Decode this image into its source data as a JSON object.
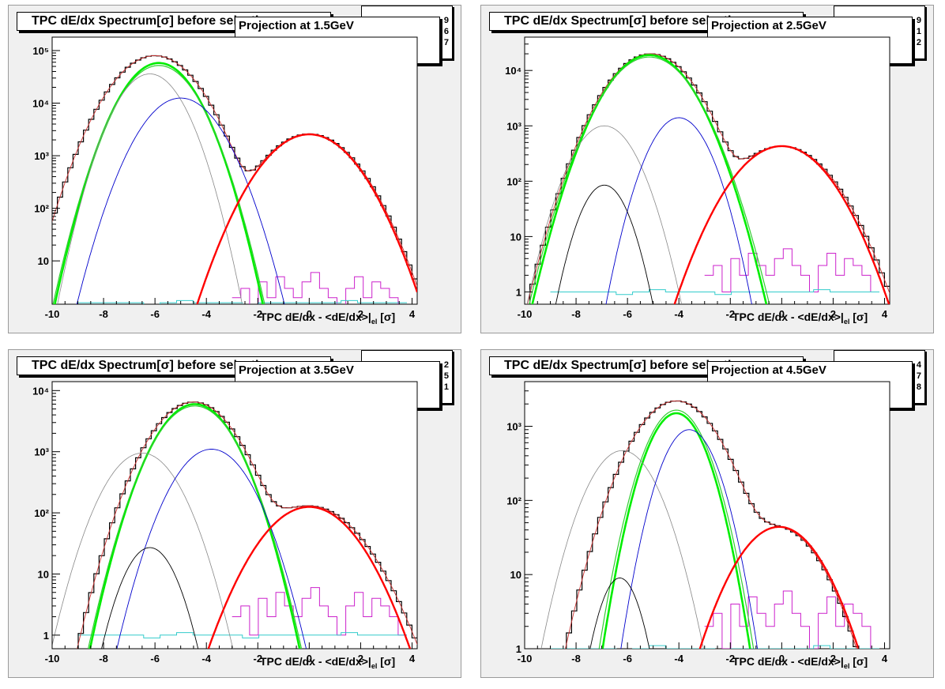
{
  "common": {
    "title": "TPC dE/dx Spectrum[σ] before selection",
    "xlabel_main": "TPC dE/dx - <dE/dx>|",
    "xlabel_sub": "el",
    "xlabel_tail": " [σ]",
    "x_tick_labels": [
      "-10",
      "-8",
      "-6",
      "-4",
      "-2",
      "0",
      "2",
      "4"
    ]
  },
  "colors": {
    "hist": "#000000",
    "total_fit": "#cc3333",
    "electron": "#ff0000",
    "pion": "#00ee00",
    "pion2": "#33cc33",
    "proton": "#0000cc",
    "kaon": "#888888",
    "deuteron": "#000000",
    "magenta": "#cc22cc",
    "cyan": "#33cccc"
  },
  "panels": [
    {
      "projection": "Projection at 1.5GeV",
      "stats": [
        "9",
        "6",
        "7"
      ],
      "y_tick_labels": [
        "10",
        "10²",
        "10³",
        "10⁴",
        "10⁵"
      ],
      "chart_data": {
        "type": "line",
        "log_y": true,
        "xlim": [
          -10,
          4.2
        ],
        "ylim": [
          1.5,
          180000
        ],
        "y_ticks": [
          10,
          100,
          1000,
          10000,
          100000
        ],
        "series": [
          {
            "name": "data",
            "mu": -6.0,
            "sigma": 1.05,
            "amp": 80000,
            "mu2": 0.0,
            "sigma2": 1.15,
            "amp2": 2600
          },
          {
            "name": "pion",
            "mu": -5.85,
            "sigma": 0.88,
            "amp": 58000
          },
          {
            "name": "pion2",
            "mu": -5.85,
            "sigma": 0.9,
            "amp": 52000
          },
          {
            "name": "kaon",
            "mu": -6.2,
            "sigma": 0.8,
            "amp": 36000
          },
          {
            "name": "proton",
            "mu": -5.0,
            "sigma": 0.95,
            "amp": 12500
          },
          {
            "name": "electron",
            "mu": 0.0,
            "sigma": 1.13,
            "amp": 2550
          }
        ]
      }
    },
    {
      "projection": "Projection at 2.5GeV",
      "stats": [
        "9",
        "1",
        "2"
      ],
      "y_tick_labels": [
        "1",
        "10",
        "10²",
        "10³",
        "10⁴"
      ],
      "chart_data": {
        "type": "line",
        "log_y": true,
        "xlim": [
          -10,
          4.2
        ],
        "ylim": [
          0.6,
          40000
        ],
        "y_ticks": [
          1,
          10,
          100,
          1000,
          10000
        ],
        "series": [
          {
            "name": "data",
            "mu": -5.1,
            "sigma": 1.05,
            "amp": 20000,
            "mu2": 0.0,
            "sigma2": 1.2,
            "amp2": 430
          },
          {
            "name": "pion",
            "mu": -5.15,
            "sigma": 1.0,
            "amp": 19000
          },
          {
            "name": "pion2",
            "mu": -5.15,
            "sigma": 1.03,
            "amp": 17500
          },
          {
            "name": "kaon",
            "mu": -6.9,
            "sigma": 0.78,
            "amp": 1000
          },
          {
            "name": "proton",
            "mu": -4.0,
            "sigma": 0.72,
            "amp": 1400
          },
          {
            "name": "deuteron",
            "mu": -6.9,
            "sigma": 0.6,
            "amp": 85
          },
          {
            "name": "electron",
            "mu": 0.0,
            "sigma": 1.15,
            "amp": 430
          }
        ]
      }
    },
    {
      "projection": "Projection at 3.5GeV",
      "stats": [
        "2",
        "5",
        "1"
      ],
      "y_tick_labels": [
        "1",
        "10",
        "10²",
        "10³",
        "10⁴"
      ],
      "chart_data": {
        "type": "line",
        "log_y": true,
        "xlim": [
          -10,
          4.2
        ],
        "ylim": [
          0.6,
          14000
        ],
        "y_ticks": [
          1,
          10,
          100,
          1000,
          10000
        ],
        "series": [
          {
            "name": "data",
            "mu": -4.5,
            "sigma": 1.05,
            "amp": 6500,
            "mu2": 0.0,
            "sigma2": 1.3,
            "amp2": 130
          },
          {
            "name": "pion",
            "mu": -4.45,
            "sigma": 0.95,
            "amp": 6000
          },
          {
            "name": "pion2",
            "mu": -4.45,
            "sigma": 0.97,
            "amp": 5600
          },
          {
            "name": "kaon",
            "mu": -6.5,
            "sigma": 0.92,
            "amp": 950
          },
          {
            "name": "proton",
            "mu": -3.8,
            "sigma": 0.95,
            "amp": 1100
          },
          {
            "name": "deuteron",
            "mu": -6.2,
            "sigma": 0.68,
            "amp": 27
          },
          {
            "name": "electron",
            "mu": 0.0,
            "sigma": 1.2,
            "amp": 125
          }
        ]
      }
    },
    {
      "projection": "Projection at 4.5GeV",
      "stats": [
        "4",
        "7",
        "8"
      ],
      "y_tick_labels": [
        "1",
        "10",
        "10²",
        "10³"
      ],
      "chart_data": {
        "type": "line",
        "log_y": true,
        "xlim": [
          -10,
          4.2
        ],
        "ylim": [
          1,
          4000
        ],
        "y_ticks": [
          1,
          10,
          100,
          1000
        ],
        "series": [
          {
            "name": "data",
            "mu": -4.1,
            "sigma": 1.1,
            "amp": 2200,
            "mu2": -0.1,
            "sigma2": 1.1,
            "amp2": 42
          },
          {
            "name": "pion",
            "mu": -4.1,
            "sigma": 0.75,
            "amp": 1500
          },
          {
            "name": "pion2",
            "mu": -4.1,
            "sigma": 0.78,
            "amp": 1650
          },
          {
            "name": "kaon",
            "mu": -6.2,
            "sigma": 0.9,
            "amp": 470
          },
          {
            "name": "proton",
            "mu": -3.6,
            "sigma": 0.72,
            "amp": 900
          },
          {
            "name": "deuteron",
            "mu": -6.3,
            "sigma": 0.55,
            "amp": 9
          },
          {
            "name": "electron",
            "mu": -0.1,
            "sigma": 1.12,
            "amp": 44
          }
        ]
      }
    }
  ]
}
